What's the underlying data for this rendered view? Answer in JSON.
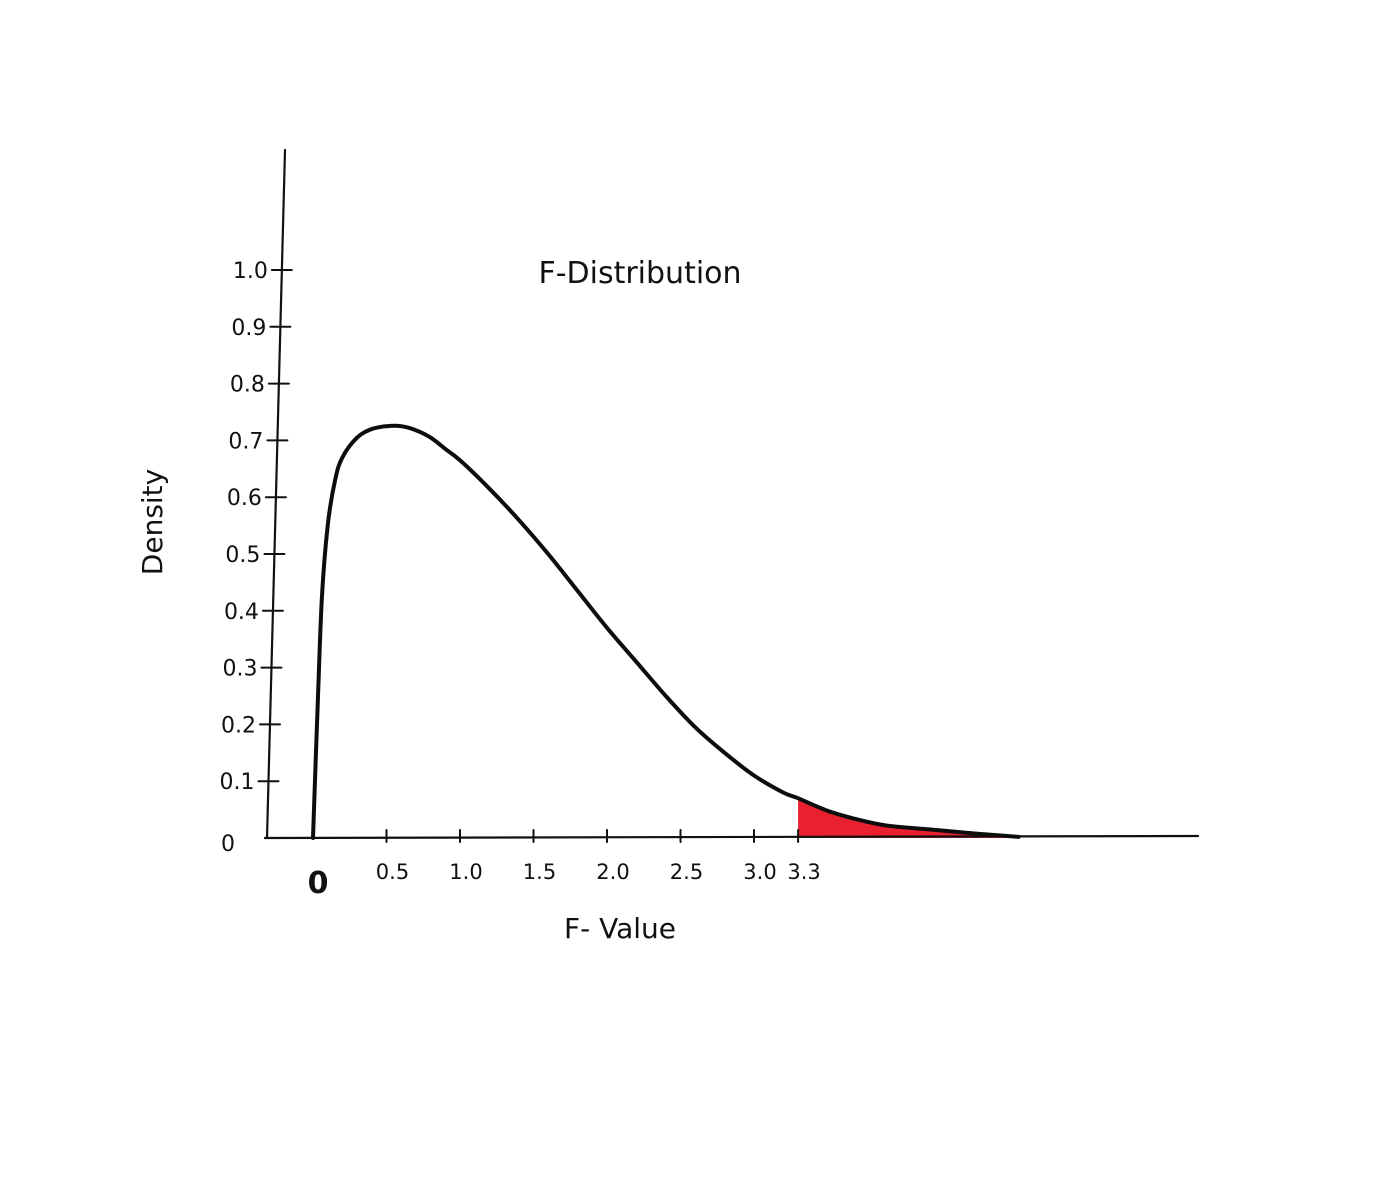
{
  "chart_data": {
    "type": "area",
    "title": "F-Distribution",
    "xlabel": "F- Value",
    "ylabel": "Density",
    "xlim": [
      -0.15,
      8.0
    ],
    "ylim": [
      0,
      1.0
    ],
    "grid": false,
    "x_ticks": [
      {
        "value": 0.5,
        "label": "0.5"
      },
      {
        "value": 1.0,
        "label": "1.0"
      },
      {
        "value": 1.5,
        "label": "1.5"
      },
      {
        "value": 2.0,
        "label": "2.0"
      },
      {
        "value": 2.5,
        "label": "2.5"
      },
      {
        "value": 3.0,
        "label": "3.0"
      },
      {
        "value": 3.3,
        "label": "3.3"
      }
    ],
    "x_origin_label": "0",
    "y_ticks": [
      {
        "value": 0.1,
        "label": "0.1"
      },
      {
        "value": 0.2,
        "label": "0.2"
      },
      {
        "value": 0.3,
        "label": "0.3"
      },
      {
        "value": 0.4,
        "label": "0.4"
      },
      {
        "value": 0.5,
        "label": "0.5"
      },
      {
        "value": 0.6,
        "label": "0.6"
      },
      {
        "value": 0.7,
        "label": "0.7"
      },
      {
        "value": 0.8,
        "label": "0.8"
      },
      {
        "value": 0.9,
        "label": "0.9"
      },
      {
        "value": 1.0,
        "label": "1.0"
      }
    ],
    "y_origin_label": "0",
    "series": [
      {
        "x": [
          0.0,
          0.03,
          0.06,
          0.1,
          0.15,
          0.2,
          0.3,
          0.4,
          0.5,
          0.6,
          0.7,
          0.8,
          0.9,
          1.0,
          1.2,
          1.4,
          1.6,
          1.8,
          2.0,
          2.2,
          2.4,
          2.6,
          2.8,
          3.0,
          3.2,
          3.3,
          3.5,
          3.7,
          3.9,
          4.2,
          4.5,
          4.8
        ],
        "y": [
          0.0,
          0.22,
          0.42,
          0.55,
          0.63,
          0.67,
          0.705,
          0.72,
          0.725,
          0.725,
          0.718,
          0.705,
          0.685,
          0.665,
          0.615,
          0.56,
          0.5,
          0.435,
          0.37,
          0.31,
          0.25,
          0.195,
          0.15,
          0.11,
          0.08,
          0.07,
          0.048,
          0.033,
          0.022,
          0.015,
          0.008,
          0.002
        ]
      }
    ],
    "shaded_region": {
      "from": 3.3,
      "to": 4.8
    },
    "colors": {
      "curve": "#0d0d0d",
      "shaded": "#e8202f",
      "axes": "#111111"
    }
  }
}
